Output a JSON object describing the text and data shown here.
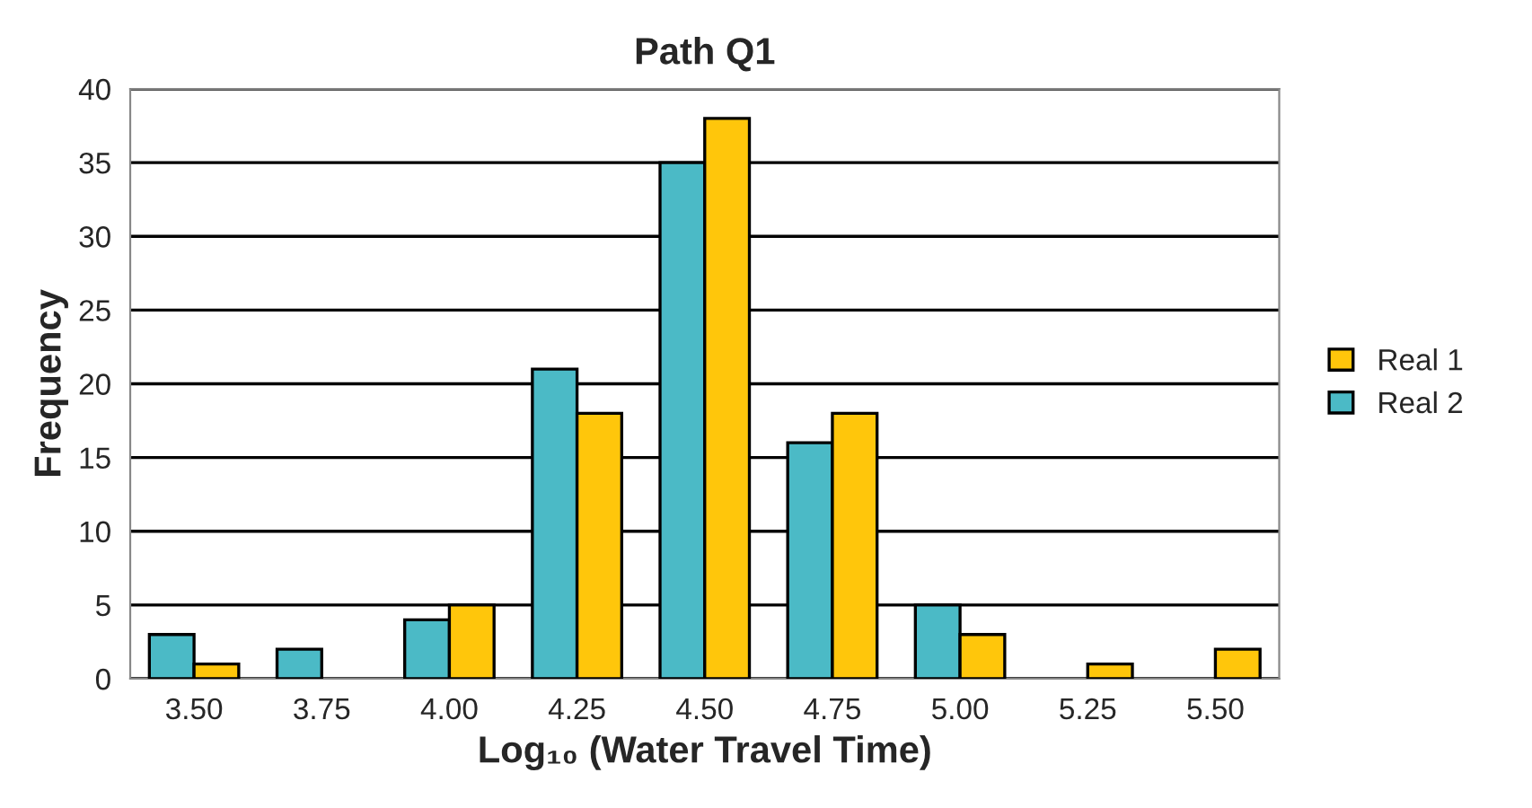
{
  "chart_data": {
    "type": "bar",
    "title": "Path Q1",
    "xlabel": "Log₁₀ (Water Travel Time)",
    "ylabel": "Frequency",
    "categories": [
      "3.50",
      "3.75",
      "4.00",
      "4.25",
      "4.50",
      "4.75",
      "5.00",
      "5.25",
      "5.50"
    ],
    "series": [
      {
        "name": "Real 2",
        "color": "#4bbac6",
        "values": [
          3,
          2,
          4,
          21,
          35,
          16,
          5,
          0,
          0
        ]
      },
      {
        "name": "Real 1",
        "color": "#ffc60b",
        "values": [
          1,
          0,
          5,
          18,
          38,
          18,
          3,
          1,
          2
        ]
      }
    ],
    "ylim": [
      0,
      40
    ],
    "yticks": [
      0,
      5,
      10,
      15,
      20,
      25,
      30,
      35,
      40
    ],
    "grid": "y",
    "legend": "right"
  }
}
